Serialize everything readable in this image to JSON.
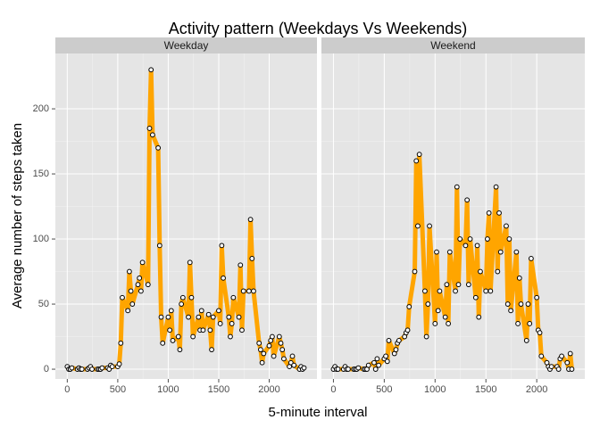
{
  "chart_data": {
    "type": "line",
    "title": "Activity pattern (Weekdays Vs Weekends)",
    "xlabel": "5-minute interval",
    "ylabel": "Average number of steps taken",
    "x": [
      0,
      15,
      30,
      45,
      100,
      115,
      130,
      145,
      200,
      215,
      230,
      245,
      300,
      315,
      330,
      345,
      400,
      415,
      430,
      445,
      500,
      515,
      530,
      545,
      600,
      615,
      630,
      645,
      700,
      715,
      730,
      745,
      800,
      815,
      830,
      845,
      900,
      915,
      930,
      945,
      1000,
      1015,
      1030,
      1045,
      1100,
      1115,
      1130,
      1145,
      1200,
      1215,
      1230,
      1245,
      1300,
      1315,
      1330,
      1345,
      1400,
      1415,
      1430,
      1445,
      1500,
      1515,
      1530,
      1545,
      1600,
      1615,
      1630,
      1645,
      1700,
      1715,
      1730,
      1745,
      1800,
      1815,
      1830,
      1845,
      1900,
      1915,
      1930,
      1945,
      2000,
      2015,
      2030,
      2045,
      2100,
      2115,
      2130,
      2145,
      2200,
      2215,
      2230,
      2245,
      2300,
      2315,
      2330,
      2345
    ],
    "series": [
      {
        "name": "Weekday",
        "values": [
          2,
          0,
          0,
          1,
          0,
          1,
          0,
          0,
          0,
          1,
          2,
          0,
          0,
          0,
          0,
          1,
          1,
          0,
          3,
          2,
          2,
          4,
          20,
          55,
          45,
          75,
          60,
          50,
          65,
          70,
          60,
          82,
          65,
          185,
          230,
          180,
          170,
          95,
          40,
          20,
          40,
          30,
          45,
          22,
          25,
          15,
          50,
          55,
          40,
          82,
          55,
          25,
          40,
          30,
          45,
          30,
          42,
          30,
          15,
          40,
          45,
          35,
          95,
          70,
          40,
          25,
          35,
          55,
          40,
          80,
          30,
          60,
          60,
          115,
          85,
          60,
          20,
          15,
          5,
          12,
          18,
          22,
          25,
          10,
          25,
          20,
          15,
          8,
          2,
          5,
          10,
          3,
          0,
          2,
          0,
          1
        ]
      },
      {
        "name": "Weekend",
        "values": [
          0,
          2,
          0,
          0,
          0,
          2,
          0,
          0,
          0,
          0,
          0,
          1,
          0,
          0,
          0,
          3,
          5,
          0,
          8,
          3,
          8,
          10,
          6,
          22,
          12,
          15,
          20,
          22,
          25,
          28,
          30,
          48,
          75,
          160,
          110,
          165,
          60,
          25,
          50,
          110,
          35,
          90,
          45,
          60,
          40,
          65,
          35,
          90,
          60,
          140,
          65,
          100,
          95,
          130,
          65,
          100,
          55,
          95,
          40,
          75,
          60,
          100,
          120,
          60,
          140,
          75,
          120,
          90,
          110,
          50,
          100,
          45,
          90,
          35,
          70,
          50,
          22,
          50,
          35,
          85,
          55,
          30,
          28,
          10,
          5,
          2,
          0,
          2,
          2,
          0,
          8,
          10,
          5,
          0,
          12,
          0
        ]
      }
    ],
    "line_color": "#ffa500",
    "xlim": [
      -118,
      2473
    ],
    "ylim": [
      -7.5,
      242.5
    ],
    "xticks": [
      0,
      500,
      1000,
      1500,
      2000
    ],
    "yticks": [
      0,
      50,
      100,
      150,
      200
    ],
    "grid": true
  }
}
